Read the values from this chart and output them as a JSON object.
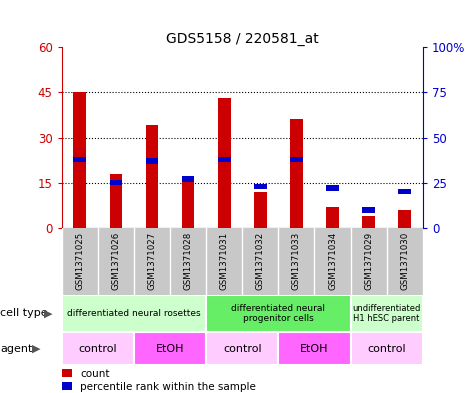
{
  "title": "GDS5158 / 220581_at",
  "samples": [
    "GSM1371025",
    "GSM1371026",
    "GSM1371027",
    "GSM1371028",
    "GSM1371031",
    "GSM1371032",
    "GSM1371033",
    "GSM1371034",
    "GSM1371029",
    "GSM1371030"
  ],
  "counts": [
    45,
    18,
    34,
    17,
    43,
    12,
    36,
    7,
    4,
    6
  ],
  "percentiles": [
    38,
    25,
    37,
    27,
    38,
    23,
    38,
    22,
    10,
    20
  ],
  "ylim_left": [
    0,
    60
  ],
  "ylim_right": [
    0,
    100
  ],
  "yticks_left": [
    0,
    15,
    30,
    45,
    60
  ],
  "yticks_right": [
    0,
    25,
    50,
    75,
    100
  ],
  "ytick_labels_left": [
    "0",
    "15",
    "30",
    "45",
    "60"
  ],
  "ytick_labels_right": [
    "0",
    "25",
    "50",
    "75",
    "100%"
  ],
  "bar_color": "#cc0000",
  "percentile_color": "#0000cc",
  "cell_type_groups": [
    {
      "label": "differentiated neural rosettes",
      "start": 0,
      "end": 4,
      "color": "#ccffcc"
    },
    {
      "label": "differentiated neural\nprogenitor cells",
      "start": 4,
      "end": 8,
      "color": "#66ee66"
    },
    {
      "label": "undifferentiated\nH1 hESC parent",
      "start": 8,
      "end": 10,
      "color": "#ccffcc"
    }
  ],
  "agent_groups": [
    {
      "label": "control",
      "start": 0,
      "end": 2,
      "color": "#ffccff"
    },
    {
      "label": "EtOH",
      "start": 2,
      "end": 4,
      "color": "#ff66ff"
    },
    {
      "label": "control",
      "start": 4,
      "end": 6,
      "color": "#ffccff"
    },
    {
      "label": "EtOH",
      "start": 6,
      "end": 8,
      "color": "#ff66ff"
    },
    {
      "label": "control",
      "start": 8,
      "end": 10,
      "color": "#ffccff"
    }
  ],
  "cell_type_label": "cell type",
  "agent_label": "agent",
  "legend_count_label": "count",
  "legend_percentile_label": "percentile rank within the sample",
  "bar_color_left": "#cc0000",
  "tick_color_left": "#cc0000",
  "tick_color_right": "#0000cc",
  "xlabels_bg": "#c8c8c8",
  "plot_bg": "#ffffff"
}
